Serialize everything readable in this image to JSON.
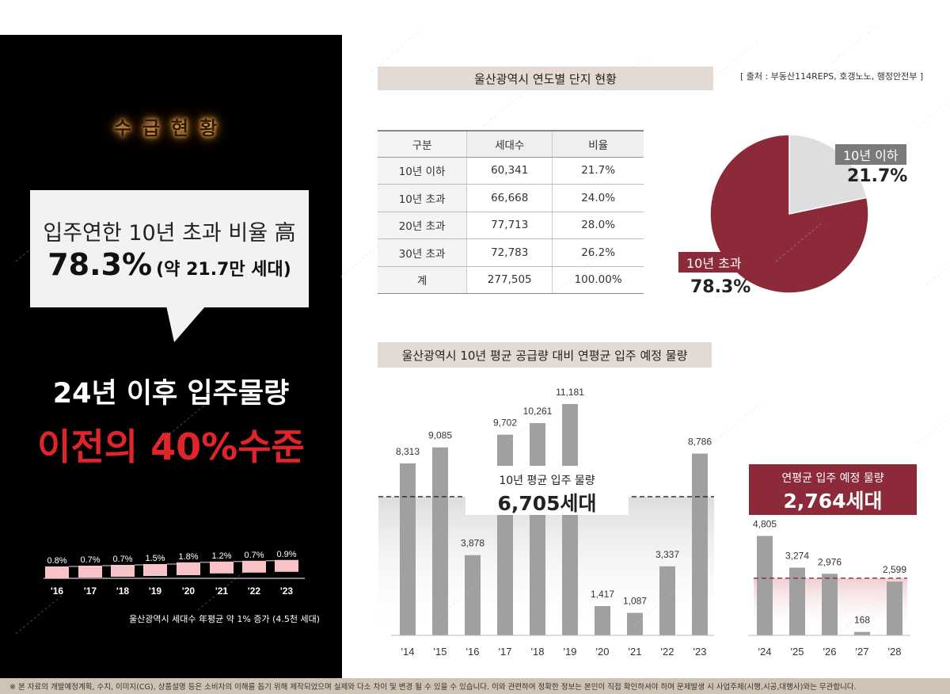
{
  "left": {
    "title": "수급현황",
    "bubble_line1": "입주연한 10년 초과 비율 高",
    "bubble_pct": "78.3%",
    "bubble_sub": "(약 21.7만 세대)",
    "headline1": "24년 이후 입주물량",
    "headline2": "이전의 40%수준",
    "note": "울산광역시 세대수 年평균 약 1% 증가 (4.5천 세대)"
  },
  "table_section": {
    "header": "울산광역시 연도별 단지 현황",
    "source": "[ 출처 : 부동산114REPS, 호갱노노, 행정안전부 ]",
    "columns": [
      "구분",
      "세대수",
      "비율"
    ],
    "rows": [
      [
        "10년 이하",
        "60,341",
        "21.7%"
      ],
      [
        "10년 초과",
        "66,668",
        "24.0%"
      ],
      [
        "20년 초과",
        "77,713",
        "28.0%"
      ],
      [
        "30년 초과",
        "72,783",
        "26.2%"
      ],
      [
        "계",
        "277,505",
        "100.00%"
      ]
    ]
  },
  "pie": {
    "label1": "10년 이하",
    "pct1": "21.7%",
    "label2": "10년 초과",
    "pct2": "78.3%"
  },
  "bar_section": {
    "header": "울산광역시 10년 평균 공급량 대비 연평균 입주 예정 물량",
    "avg_label": "10년 평균 입주 물량",
    "avg_value": "6,705세대",
    "plan_label": "연평균 입주 예정 물량",
    "plan_value": "2,764세대"
  },
  "footer": "※ 본 자료의 개발예정계획, 수치, 이미지(CG), 상품설명 등은 소비자의 이해를 돕기 위해 제작되었으며 실제와 다소 차이 및 변경 될 수 있을 수 있습니다. 이와 관련하여 정확한 정보는 본인이 직접 확인하셔야 하며 문제발생 시 사업주체(시행,시공,대행사)와는 무관합니다.",
  "colors": {
    "accent_red": "#e0242b",
    "wine": "#8c2a3a",
    "bar_gray": "#a0a0a0",
    "pink": "#f7c3c7"
  },
  "chart_data": [
    {
      "type": "pie",
      "categories": [
        "10년 이하",
        "10년 초과"
      ],
      "values": [
        21.7,
        78.3
      ]
    },
    {
      "type": "bar",
      "categories": [
        "'14",
        "'15",
        "'16",
        "'17",
        "'18",
        "'19",
        "'20",
        "'21",
        "'22",
        "'23",
        "'24",
        "'25",
        "'26",
        "'27",
        "'28"
      ],
      "values": [
        8313,
        9085,
        3878,
        9702,
        10261,
        11181,
        1417,
        1087,
        3337,
        8786,
        4805,
        3274,
        2976,
        168,
        2599
      ],
      "value_labels": [
        "8,313",
        "9,085",
        "3,878",
        "9,702",
        "10,261",
        "11,181",
        "1,417",
        "1,087",
        "3,337",
        "8,786",
        "4,805",
        "3,274",
        "2,976",
        "168",
        "2,599"
      ],
      "reference_lines": [
        6705,
        2764
      ],
      "ylim": [
        0,
        12000
      ]
    },
    {
      "type": "bar",
      "categories": [
        "'16",
        "'17",
        "'18",
        "'19",
        "'20",
        "'21",
        "'22",
        "'23"
      ],
      "values": [
        0.8,
        0.7,
        0.7,
        1.5,
        1.8,
        1.2,
        0.7,
        0.9
      ],
      "value_labels": [
        "0.8%",
        "0.7%",
        "0.7%",
        "1.5%",
        "1.8%",
        "1.2%",
        "0.7%",
        "0.9%"
      ]
    }
  ]
}
